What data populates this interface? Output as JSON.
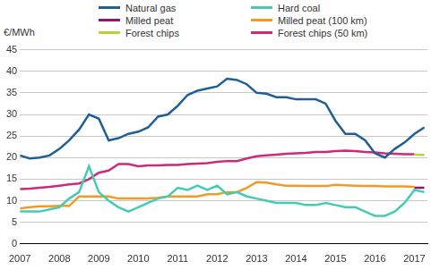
{
  "chart_data": {
    "type": "line",
    "y_label": "€/MWh",
    "x": [
      2007,
      2007.25,
      2007.5,
      2007.75,
      2008,
      2008.25,
      2008.5,
      2008.75,
      2009,
      2009.25,
      2009.5,
      2009.75,
      2010,
      2010.25,
      2010.5,
      2010.75,
      2011,
      2011.25,
      2011.5,
      2011.75,
      2012,
      2012.25,
      2012.5,
      2012.75,
      2013,
      2013.25,
      2013.5,
      2013.75,
      2014,
      2014.25,
      2014.5,
      2014.75,
      2015,
      2015.25,
      2015.5,
      2015.75,
      2016,
      2016.25,
      2016.5,
      2016.75,
      2017,
      2017.25
    ],
    "series": [
      {
        "name": "Natural gas",
        "color": "#1f5f96",
        "values": [
          20.5,
          19.8,
          20,
          20.5,
          22,
          24,
          26.5,
          30,
          29,
          24,
          24.5,
          25.5,
          26,
          27,
          29.5,
          30,
          32,
          34.5,
          35.5,
          36,
          36.5,
          38.3,
          38,
          37,
          35,
          34.8,
          34,
          34,
          33.5,
          33.5,
          33.5,
          32.5,
          28.5,
          25.5,
          25.5,
          24,
          21,
          20,
          22,
          23.5,
          25.5,
          27
        ]
      },
      {
        "name": "Hard coal",
        "color": "#45cbb4",
        "values": [
          7.5,
          7.5,
          7.5,
          8,
          8.5,
          10.5,
          12,
          18,
          12,
          10,
          8.5,
          7.5,
          8.5,
          9.5,
          10.5,
          11,
          13,
          12.5,
          13.5,
          12.5,
          13.5,
          11.5,
          12,
          11,
          10.5,
          10,
          9.5,
          9.5,
          9.5,
          9,
          9,
          9.5,
          9,
          8.5,
          8.5,
          7.5,
          6.5,
          6.5,
          7.5,
          9.5,
          12.5,
          12
        ]
      },
      {
        "name": "Milled peat",
        "color": "#8b1a6b",
        "values": [
          null,
          null,
          null,
          null,
          null,
          null,
          null,
          null,
          null,
          null,
          null,
          null,
          null,
          null,
          null,
          null,
          null,
          null,
          null,
          null,
          null,
          null,
          null,
          null,
          null,
          null,
          null,
          null,
          null,
          null,
          null,
          null,
          null,
          null,
          null,
          null,
          null,
          null,
          null,
          null,
          13,
          13
        ]
      },
      {
        "name": "Milled peat (100 km)",
        "color": "#f39a25",
        "values": [
          8.2,
          8.5,
          8.7,
          8.7,
          8.8,
          8.8,
          11,
          11,
          11,
          11,
          10.5,
          10.5,
          10.5,
          10.5,
          10.7,
          11,
          11,
          11,
          11,
          11.5,
          11.5,
          12,
          12,
          13,
          14.3,
          14.2,
          13.8,
          13.5,
          13.5,
          13.4,
          13.4,
          13.4,
          13.7,
          13.6,
          13.5,
          13.4,
          13.4,
          13.3,
          13.3,
          13.3,
          13.2,
          null
        ]
      },
      {
        "name": "Forest chips",
        "color": "#b7d433",
        "values": [
          null,
          null,
          null,
          null,
          null,
          null,
          null,
          null,
          null,
          null,
          null,
          null,
          null,
          null,
          null,
          null,
          null,
          null,
          null,
          null,
          null,
          null,
          null,
          null,
          null,
          null,
          null,
          null,
          null,
          null,
          null,
          null,
          null,
          null,
          null,
          null,
          null,
          null,
          null,
          null,
          20.7,
          20.6
        ]
      },
      {
        "name": "Forest chips (50 km)",
        "color": "#cc2a7a",
        "values": [
          12.7,
          12.8,
          13,
          13.2,
          13.5,
          13.8,
          14,
          15,
          16.5,
          17,
          18.5,
          18.5,
          18,
          18.2,
          18.2,
          18.3,
          18.3,
          18.5,
          18.6,
          18.7,
          19,
          19.2,
          19.2,
          19.8,
          20.3,
          20.5,
          20.7,
          20.9,
          21,
          21.1,
          21.3,
          21.3,
          21.5,
          21.6,
          21.5,
          21.3,
          21.2,
          21,
          20.9,
          20.8,
          20.8,
          null
        ]
      }
    ],
    "xlim": [
      2007,
      2017.33
    ],
    "xticks": [
      2007,
      2008,
      2009,
      2010,
      2011,
      2012,
      2013,
      2014,
      2015,
      2016,
      2017
    ],
    "ylim": [
      0,
      45
    ],
    "yticks": [
      0,
      5,
      10,
      15,
      20,
      25,
      30,
      35,
      40,
      45
    ],
    "grid": true,
    "legend": "top"
  }
}
